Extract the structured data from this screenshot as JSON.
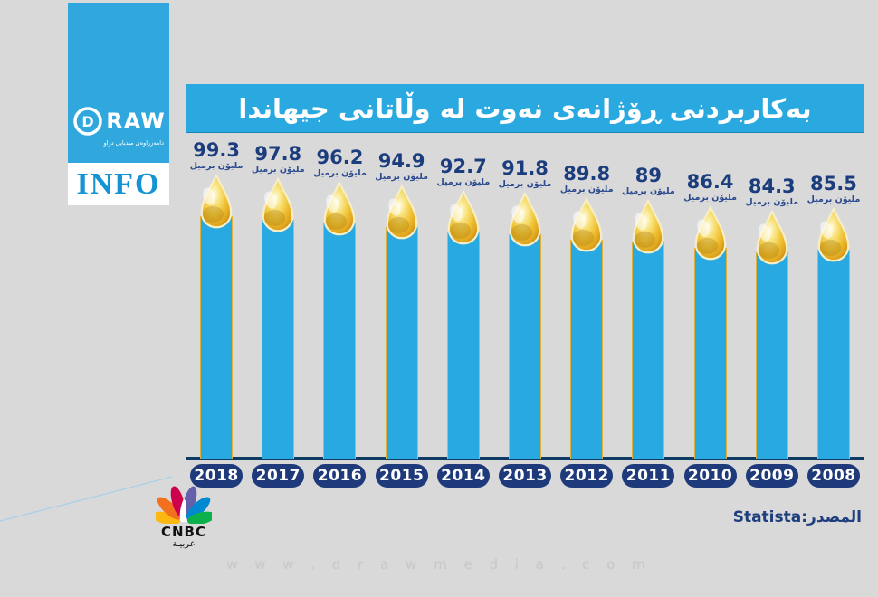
{
  "brand": {
    "d_letter": "D",
    "raw_label": "RAW",
    "subtext": "دامەزراوەی میدیایی دراو",
    "info_label": "INFO"
  },
  "title": "بەکاربردنی ڕۆژانەی نەوت لە وڵاتانی جیهاندا",
  "chart_data": {
    "type": "bar",
    "title": "بەکاربردنی ڕۆژانەی نەوت لە وڵاتانی جیهاندا",
    "categories": [
      "2018",
      "2017",
      "2016",
      "2015",
      "2014",
      "2013",
      "2012",
      "2011",
      "2010",
      "2009",
      "2008"
    ],
    "values": [
      99.3,
      97.8,
      96.2,
      94.9,
      92.7,
      91.8,
      89.8,
      89,
      86.4,
      84.3,
      85.5
    ],
    "unit_label": "ملیۆن برمیل",
    "ylim": [
      0,
      110
    ],
    "bar_color": "#29a9e2",
    "drop_color": "#eec32f",
    "label_color": "#1c3d7d",
    "pill_color": "#1e3a7a",
    "legend_position": "none",
    "grid": false
  },
  "footer": {
    "source_label": "المصدر:Statista",
    "cnbc_name": "CNBC",
    "cnbc_arabic": "عربيـة",
    "watermark": "w w w . d r a w m e d i a . c o m"
  }
}
